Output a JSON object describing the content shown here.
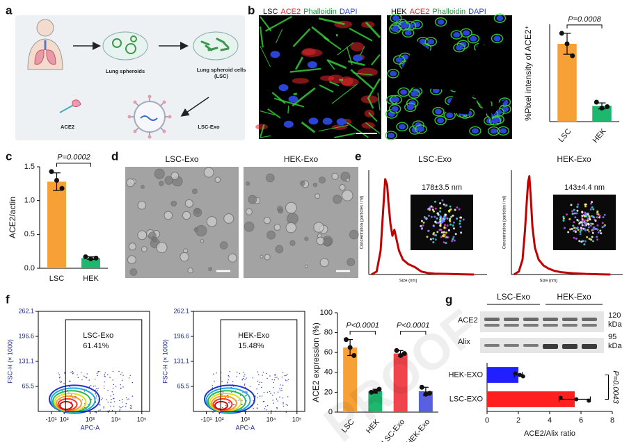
{
  "panel_labels": [
    "a",
    "b",
    "c",
    "d",
    "e",
    "f",
    "g"
  ],
  "watermark": "PROOF",
  "panel_a": {
    "steps": [
      "Lung spheroids",
      "Lung spheroid cells (LSC)",
      "ACE2",
      "LSC-Exo"
    ]
  },
  "panel_b": {
    "images": [
      {
        "cell": "LSC",
        "stains": [
          {
            "name": "ACE2",
            "color": "#e8262b"
          },
          {
            "name": "Phalloidin",
            "color": "#1a9e3a"
          },
          {
            "name": "DAPI",
            "color": "#2a45d6"
          }
        ]
      },
      {
        "cell": "HEK",
        "stains": [
          {
            "name": "ACE2",
            "color": "#e8262b"
          },
          {
            "name": "Phalloidin",
            "color": "#1a9e3a"
          },
          {
            "name": "DAPI",
            "color": "#2a45d6"
          }
        ]
      }
    ]
  },
  "panel_d": {
    "titles": [
      "LSC-Exo",
      "HEK-Exo"
    ]
  },
  "panel_g_blot": {
    "groups": [
      "LSC-Exo",
      "HEK-Exo"
    ],
    "rows": [
      {
        "name": "ACE2",
        "size": "120",
        "unit": "kDa"
      },
      {
        "name": "Alix",
        "size": "95",
        "unit": "kDa"
      }
    ]
  },
  "chart_data": [
    {
      "type": "bar",
      "ylabel": "%Pixel intensity of ACE2⁺",
      "categories": [
        "LSC",
        "HEK"
      ],
      "values": [
        52,
        10.5
      ],
      "errors": [
        7,
        2
      ],
      "points": [
        [
          59,
          52,
          44
        ],
        [
          13,
          9,
          10
        ]
      ],
      "colors": [
        "#f7a035",
        "#1db76e"
      ],
      "ylim": [
        0,
        65
      ],
      "annotations": [
        "P=0.0008"
      ]
    },
    {
      "type": "bar",
      "ylabel": "ACE2/actin",
      "categories": [
        "LSC",
        "HEK"
      ],
      "values": [
        1.28,
        0.15
      ],
      "errors": [
        0.13,
        0.02
      ],
      "points": [
        [
          1.43,
          1.3,
          1.18
        ],
        [
          0.17,
          0.14,
          0.15
        ]
      ],
      "colors": [
        "#f7a035",
        "#1db76e"
      ],
      "ylim": [
        0,
        1.5
      ],
      "yticks": [
        {
          "value": 0,
          "label": "0.0"
        },
        {
          "value": 0.5,
          "label": "0.5"
        },
        {
          "value": 1,
          "label": "1.0"
        },
        {
          "value": 1.5,
          "label": "1.5"
        }
      ],
      "annotations": [
        "P=0.0002"
      ]
    },
    {
      "type": "density",
      "title": "LSC-Exo",
      "values": [
        61.41
      ],
      "value_labels": [
        "61.41%"
      ],
      "xlabel": "APC-A",
      "ylabel": "FSC-H (× 1000)",
      "xscale": "symlog",
      "xlim": [
        -20,
        200000
      ],
      "ylim": [
        0,
        262.1
      ],
      "xticks": [
        {
          "value": -10,
          "label": "-10¹"
        },
        {
          "value": 100,
          "label": "10²"
        },
        {
          "value": 1000,
          "label": "10³"
        },
        {
          "value": 10000,
          "label": "10⁴"
        },
        {
          "value": 100000,
          "label": "10⁵"
        }
      ],
      "yticks": [
        65.5,
        131.1,
        196.6,
        262.1
      ]
    },
    {
      "type": "density",
      "title": "HEK-Exo",
      "values": [
        15.48
      ],
      "value_labels": [
        "15.48%"
      ],
      "xlabel": "APC-A",
      "ylabel": "FSC-H (× 1000)",
      "xscale": "symlog",
      "xlim": [
        -20,
        200000
      ],
      "ylim": [
        0,
        262.1
      ],
      "xticks": [
        {
          "value": -10,
          "label": "-10¹"
        },
        {
          "value": 100,
          "label": "10²"
        },
        {
          "value": 1000,
          "label": "10³"
        },
        {
          "value": 10000,
          "label": "10⁴"
        },
        {
          "value": 100000,
          "label": "10⁵"
        }
      ],
      "yticks": [
        65.5,
        131.1,
        196.6,
        262.1
      ]
    },
    {
      "type": "line",
      "title": "LSC-Exo",
      "annotation": "178±3.5 nm",
      "xlabel": "Size (nm)",
      "ylabel": "Concentration (particles / ml)",
      "x": [
        20,
        60,
        90,
        110,
        125,
        140,
        150,
        165,
        180,
        195,
        210,
        230,
        260,
        300,
        350,
        400,
        450,
        500,
        600,
        700,
        800
      ],
      "values": [
        0,
        0.1,
        0.8,
        2.2,
        3.2,
        3.0,
        2.4,
        1.7,
        1.3,
        1.5,
        1.2,
        0.8,
        0.5,
        0.35,
        0.25,
        0.1,
        0.05,
        0.03,
        0.02,
        0.01,
        0
      ],
      "xlim": [
        0,
        900
      ],
      "ylim": [
        0,
        3.5
      ],
      "color": "#c00000"
    },
    {
      "type": "line",
      "title": "HEK-Exo",
      "annotation": "143±4.4 nm",
      "xlabel": "Size (nm)",
      "ylabel": "Concentration (particles / ml)",
      "x": [
        20,
        60,
        90,
        110,
        125,
        135,
        145,
        155,
        170,
        190,
        220,
        260,
        300,
        350,
        400,
        500,
        600,
        700,
        800
      ],
      "values": [
        0,
        0.1,
        0.5,
        1.5,
        2.5,
        3.1,
        3.3,
        2.7,
        1.6,
        0.9,
        0.5,
        0.3,
        0.2,
        0.12,
        0.08,
        0.04,
        0.02,
        0.01,
        0
      ],
      "xlim": [
        0,
        900
      ],
      "ylim": [
        0,
        3.5
      ],
      "color": "#c00000"
    },
    {
      "type": "bar",
      "ylabel": "ACE2 expression (%)",
      "categories": [
        "LSC",
        "HEK",
        "LSC-Exo",
        "HEK-Exo"
      ],
      "values": [
        65,
        21,
        59,
        21
      ],
      "errors": [
        8,
        2,
        3,
        4
      ],
      "points": [
        [
          73,
          65,
          57
        ],
        [
          20,
          21,
          23
        ],
        [
          62,
          57,
          59
        ],
        [
          25,
          18,
          19
        ]
      ],
      "colors": [
        "#f7a035",
        "#1db76e",
        "#f0454a",
        "#5660e0"
      ],
      "ylim": [
        0,
        100
      ],
      "yticks": [
        0,
        20,
        40,
        60,
        80,
        100
      ],
      "annotations": [
        "P<0.0001",
        "P<0.0001"
      ]
    },
    {
      "type": "hbar",
      "xlabel": "ACE2/Alix ratio",
      "categories": [
        "HEK-EXO",
        "LSC-EXO"
      ],
      "values": [
        2.0,
        5.6
      ],
      "errors": [
        0.25,
        1.0
      ],
      "points": [
        [
          1.8,
          2.1,
          2.3
        ],
        [
          4.7,
          5.7,
          6.5
        ]
      ],
      "colors": [
        "#1f1fff",
        "#ff1f1f"
      ],
      "xlim": [
        0,
        8
      ],
      "xticks": [
        0,
        2,
        4,
        6,
        8
      ],
      "annotations": [
        "P=0.0043"
      ]
    }
  ]
}
